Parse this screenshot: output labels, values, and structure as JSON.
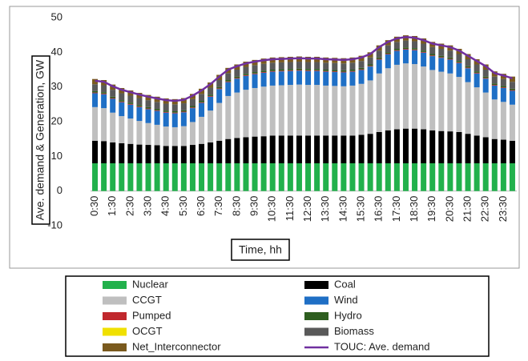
{
  "chart_data": {
    "type": "stacked_bar",
    "y_label": "Ave. demand & Generation, GW",
    "x_label": "Time, hh",
    "categories": [
      "0:30",
      null,
      "1:30",
      null,
      "2:30",
      null,
      "3:30",
      null,
      "4:30",
      null,
      "5:30",
      null,
      "6:30",
      null,
      "7:30",
      null,
      "8:30",
      null,
      "9:30",
      null,
      "10:30",
      null,
      "11:30",
      null,
      "12:30",
      null,
      "13:30",
      null,
      "14:30",
      null,
      "15:30",
      null,
      "16:30",
      null,
      "17:30",
      null,
      "18:30",
      null,
      "19:30",
      null,
      "20:30",
      null,
      "21:30",
      null,
      "22:30",
      null,
      "23:30",
      null
    ],
    "ylim": [
      -10,
      50
    ],
    "yticks": [
      -10,
      0,
      10,
      20,
      30,
      40,
      50
    ],
    "grid": false,
    "series": [
      {
        "name": "Nuclear",
        "color": "#22b14c",
        "values": [
          8,
          8,
          8,
          8,
          8,
          8,
          8,
          8,
          8,
          8,
          8,
          8,
          8,
          8,
          8,
          8,
          8,
          8,
          8,
          8,
          8,
          8,
          8,
          8,
          8,
          8,
          8,
          8,
          8,
          8,
          8,
          8,
          8,
          8,
          8,
          8,
          8,
          8,
          8,
          8,
          8,
          8,
          8,
          8,
          8,
          8,
          8,
          8
        ]
      },
      {
        "name": "Coal",
        "color": "#000000",
        "values": [
          6.5,
          6.4,
          6.0,
          5.8,
          5.6,
          5.4,
          5.3,
          5.2,
          5.0,
          5.0,
          5.0,
          5.3,
          5.6,
          6.0,
          6.5,
          7.0,
          7.3,
          7.5,
          7.7,
          7.8,
          8.0,
          8.0,
          8.0,
          8.0,
          8.0,
          8.0,
          8.0,
          8.0,
          8.0,
          8.0,
          8.2,
          8.5,
          9.0,
          9.5,
          9.8,
          10.0,
          10.0,
          9.8,
          9.5,
          9.3,
          9.2,
          9.0,
          8.5,
          8.0,
          7.5,
          7.0,
          6.8,
          6.5
        ]
      },
      {
        "name": "CCGT",
        "color": "#bfbfbf",
        "values": [
          9.7,
          9.5,
          8.6,
          7.8,
          7.3,
          6.8,
          6.3,
          5.9,
          5.6,
          5.4,
          5.7,
          6.6,
          7.8,
          9.2,
          10.9,
          12.4,
          13.1,
          13.7,
          14.0,
          14.3,
          14.4,
          14.5,
          14.6,
          14.7,
          14.6,
          14.6,
          14.4,
          14.3,
          14.2,
          14.4,
          14.7,
          15.4,
          16.9,
          17.9,
          18.6,
          18.8,
          18.6,
          18.1,
          17.4,
          17.1,
          16.7,
          15.9,
          14.9,
          13.9,
          12.9,
          11.4,
          10.9,
          10.4
        ]
      },
      {
        "name": "Wind",
        "color": "#1f6fc5",
        "values": [
          4,
          4,
          4,
          4,
          4,
          4,
          4,
          4,
          4,
          4,
          4,
          4,
          4,
          4,
          4,
          4,
          4,
          4,
          4,
          4,
          4,
          4,
          4,
          4,
          4,
          4,
          4,
          4,
          4,
          4,
          4,
          4,
          4,
          4,
          4,
          4,
          4,
          4,
          4,
          4,
          4,
          4,
          4,
          4,
          4,
          4,
          4,
          4
        ]
      },
      {
        "name": "Pumped",
        "color": "#c0282d",
        "values": [
          0.2,
          0.2,
          0.2,
          0.2,
          0.2,
          0.2,
          0.2,
          0.2,
          0.2,
          0.2,
          0.2,
          0.2,
          0.2,
          0.2,
          0.2,
          0.2,
          0.2,
          0.2,
          0.2,
          0.2,
          0.2,
          0.2,
          0.2,
          0.2,
          0.2,
          0.2,
          0.2,
          0.2,
          0.2,
          0.2,
          0.2,
          0.2,
          0.2,
          0.2,
          0.2,
          0.2,
          0.2,
          0.2,
          0.2,
          0.2,
          0.2,
          0.2,
          0.2,
          0.2,
          0.2,
          0.2,
          0.2,
          0.2
        ]
      },
      {
        "name": "Hydro",
        "color": "#2e5e1f",
        "values": [
          0.4,
          0.4,
          0.4,
          0.4,
          0.4,
          0.4,
          0.4,
          0.4,
          0.4,
          0.4,
          0.4,
          0.4,
          0.4,
          0.4,
          0.4,
          0.4,
          0.4,
          0.4,
          0.4,
          0.4,
          0.4,
          0.4,
          0.4,
          0.4,
          0.4,
          0.4,
          0.4,
          0.4,
          0.4,
          0.4,
          0.4,
          0.4,
          0.4,
          0.4,
          0.4,
          0.4,
          0.4,
          0.4,
          0.4,
          0.4,
          0.4,
          0.4,
          0.4,
          0.4,
          0.4,
          0.4,
          0.4,
          0.4
        ]
      },
      {
        "name": "OCGT",
        "color": "#f0e000",
        "values": [
          0,
          0,
          0,
          0,
          0,
          0,
          0,
          0,
          0,
          0,
          0,
          0,
          0,
          0,
          0,
          0,
          0,
          0,
          0,
          0,
          0,
          0,
          0,
          0,
          0,
          0,
          0,
          0,
          0,
          0,
          0,
          0,
          0,
          0,
          0,
          0,
          0,
          0,
          0,
          0,
          0,
          0,
          0,
          0,
          0,
          0,
          0,
          0
        ]
      },
      {
        "name": "Biomass",
        "color": "#595959",
        "values": [
          2,
          2,
          2,
          2,
          2,
          2,
          2,
          2,
          2,
          2,
          2,
          2,
          2,
          2,
          2,
          2,
          2,
          2,
          2,
          2,
          2,
          2,
          2,
          2,
          2,
          2,
          2,
          2,
          2,
          2,
          2,
          2,
          2,
          2,
          2,
          2,
          2,
          2,
          2,
          2,
          2,
          2,
          2,
          2,
          2,
          2,
          2,
          2
        ]
      },
      {
        "name": "Net_Interconnector",
        "color": "#7a5a1e",
        "values": [
          1.5,
          1.5,
          1.5,
          1.5,
          1.5,
          1.5,
          1.5,
          1.5,
          1.5,
          1.5,
          1.5,
          1.5,
          1.5,
          1.5,
          1.5,
          1.5,
          1.5,
          1.5,
          1.5,
          1.5,
          1.5,
          1.5,
          1.5,
          1.5,
          1.5,
          1.5,
          1.5,
          1.5,
          1.5,
          1.5,
          1.5,
          1.5,
          1.5,
          1.5,
          1.5,
          1.5,
          1.5,
          1.5,
          1.5,
          1.5,
          1.5,
          1.5,
          1.5,
          1.5,
          1.5,
          1.5,
          1.5,
          1.5
        ]
      },
      {
        "name": "TOUC: Ave. demand",
        "color": "#7030a0",
        "type": "line",
        "values": [
          31.8,
          31.5,
          30.2,
          29.2,
          28.5,
          27.8,
          27.2,
          26.7,
          26.2,
          26.0,
          26.3,
          27.5,
          29.0,
          30.8,
          33.0,
          35.0,
          36.0,
          36.8,
          37.3,
          37.7,
          38.0,
          38.1,
          38.2,
          38.3,
          38.2,
          38.2,
          38.0,
          37.9,
          37.8,
          38.0,
          38.5,
          39.5,
          41.5,
          43.0,
          44.0,
          44.4,
          44.2,
          43.5,
          42.5,
          42.0,
          41.5,
          40.5,
          39.0,
          37.5,
          36.0,
          34.0,
          33.3,
          32.5
        ]
      }
    ]
  }
}
